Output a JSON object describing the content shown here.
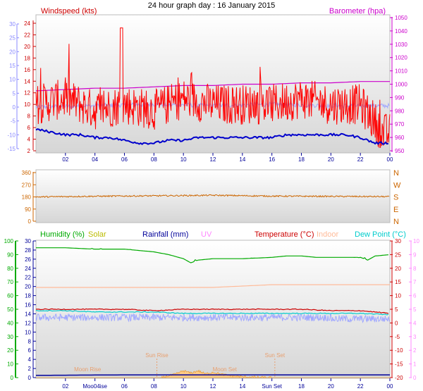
{
  "title": "24 hour graph day : 16 January 2015",
  "colors": {
    "wind": "#ff0000",
    "wind_axis": "#cc0000",
    "baro": "#cc00cc",
    "temp_left": "#8888ff",
    "blue_line": "#0000cc",
    "lavender": "#a0a8ff",
    "dir": "#cc6600",
    "humidity": "#00aa00",
    "solar": "#bbbb00",
    "rain": "#000099",
    "uv": "#ff88ff",
    "temperature": "#cc0000",
    "indoor": "#ffbb99",
    "dewpoint": "#00cccc",
    "plot_top": "#ffffff",
    "plot_bottom": "#d8d8d8"
  },
  "x_ticks": [
    "02",
    "04",
    "06",
    "08",
    "10",
    "12",
    "14",
    "16",
    "18",
    "20",
    "22",
    "00"
  ],
  "panel1": {
    "left_title": "Windspeed (kts)",
    "right_title": "Barometer (hpa)",
    "far_left_ticks": [
      "30",
      "25",
      "20",
      "15",
      "10",
      "5",
      "0",
      "-5",
      "-10",
      "-15"
    ],
    "left_ticks": [
      "24",
      "22",
      "20",
      "18",
      "16",
      "14",
      "12",
      "10",
      "8",
      "6",
      "4",
      "2"
    ],
    "right_ticks": [
      "1050",
      "1040",
      "1030",
      "1020",
      "1010",
      "1000",
      "990",
      "980",
      "970",
      "960",
      "950"
    ]
  },
  "panel2": {
    "left_ticks": [
      "360",
      "270",
      "180",
      "90",
      "0"
    ],
    "right_ticks": [
      "N",
      "W",
      "S",
      "E",
      "N"
    ]
  },
  "panel3": {
    "legend": {
      "humidity": "Humidity (%)",
      "solar": "Solar",
      "rainfall": "Rainfall (mm)",
      "uv": "UV",
      "temperature": "Temperature (°C)",
      "indoor": "Indoor",
      "dewpoint": "Dew Point (°C)"
    },
    "humidity_ticks": [
      "100",
      "90",
      "80",
      "70",
      "60",
      "50",
      "40",
      "30",
      "20",
      "10",
      "0"
    ],
    "left_ticks": [
      "30",
      "28",
      "26",
      "24",
      "22",
      "20",
      "18",
      "16",
      "14",
      "12",
      "10",
      "8",
      "6",
      "4",
      "2",
      "0"
    ],
    "right_temp_ticks": [
      "30",
      "25",
      "20",
      "15",
      "10",
      "5",
      "0",
      "-5",
      "-10",
      "-15",
      "-20"
    ],
    "right_uv_ticks": [
      "10",
      "9",
      "8",
      "7",
      "6",
      "5",
      "4",
      "3",
      "2",
      "1",
      "0"
    ],
    "annotations": {
      "sun_rise": "Sun Rise",
      "sun_set": "Sun Set",
      "moon_rise": "Moon Rise",
      "moon_set": "Moon Set"
    },
    "x_ticks": [
      "02",
      "Moo04ise",
      "06",
      "08",
      "10",
      "12",
      "14",
      "Sun Set",
      "18",
      "20",
      "22",
      "00"
    ]
  },
  "chart_data": [
    {
      "type": "line",
      "title": "24 hour graph day : 16 January 2015",
      "x_range_hours": [
        0,
        24
      ],
      "ylabel_left": "Windspeed (kts)",
      "ylabel_right": "Barometer (hpa)",
      "ylim_left": [
        2,
        25
      ],
      "ylim_right": [
        950,
        1050
      ],
      "series": [
        {
          "name": "Windspeed (kts)",
          "axis": "left",
          "x": [
            0,
            2,
            4,
            6,
            8,
            10,
            12,
            14,
            16,
            18,
            20,
            22,
            23,
            23.5,
            24
          ],
          "values": [
            10,
            11,
            9,
            10,
            9,
            11,
            10,
            10,
            10,
            11,
            10,
            10,
            7,
            5,
            5
          ],
          "gusts_max": 23.2
        },
        {
          "name": "Barometer (hpa)",
          "axis": "right",
          "x": [
            0,
            2,
            4,
            6,
            8,
            10,
            12,
            14,
            16,
            18,
            20,
            22,
            24
          ],
          "values": [
            995,
            996,
            997,
            997,
            998,
            999,
            999,
            1000,
            1000,
            1001,
            1001,
            1002,
            1002
          ]
        },
        {
          "axis": "far_left",
          "x": [
            0,
            1,
            2,
            3,
            4,
            5,
            6,
            7,
            8,
            9,
            10,
            11,
            12,
            13,
            14,
            15,
            16,
            17,
            18,
            19,
            20,
            21,
            22,
            23,
            24
          ],
          "values": [
            -8,
            -9,
            -10,
            -10,
            -11,
            -11,
            -12,
            -13,
            -13,
            -12,
            -12,
            -11,
            -11,
            -11,
            -11,
            -11,
            -11,
            -10,
            -10,
            -10,
            -10,
            -10,
            -11,
            -13,
            -13
          ]
        },
        {
          "axis": "far_left",
          "x": [
            0,
            4,
            8,
            12,
            16,
            20,
            24
          ],
          "values": [
            0,
            0.5,
            1,
            0.5,
            1,
            0.5,
            0.5
          ]
        }
      ]
    },
    {
      "type": "line",
      "x_range_hours": [
        0,
        24
      ],
      "ylim": [
        0,
        360
      ],
      "series": [
        {
          "x": [
            0,
            4,
            8,
            12,
            16,
            20,
            24
          ],
          "values": [
            180,
            185,
            188,
            192,
            186,
            184,
            182
          ]
        }
      ]
    },
    {
      "type": "line",
      "x_range_hours": [
        0,
        24
      ],
      "series": [
        {
          "name": "Humidity (%)",
          "axis": "humidity",
          "x": [
            0,
            2,
            4,
            6,
            7,
            8,
            9,
            10,
            10.5,
            11,
            12,
            14,
            16,
            17,
            18,
            19,
            20,
            21,
            22,
            22.5,
            23,
            24
          ],
          "values": [
            95,
            95,
            94,
            94,
            93,
            92,
            90,
            87,
            84,
            86,
            87,
            87,
            88,
            89,
            89,
            88,
            88,
            88,
            88,
            86,
            89,
            90
          ]
        },
        {
          "name": "Temperature (°C)",
          "axis": "right_temp",
          "x": [
            0,
            2,
            4,
            6,
            8,
            10,
            12,
            14,
            16,
            18,
            20,
            22,
            24
          ],
          "values": [
            5,
            5,
            5,
            5,
            4.5,
            5,
            5,
            5,
            5,
            5,
            4.5,
            4.5,
            3.5
          ]
        },
        {
          "name": "Dew Point (°C)",
          "axis": "right_temp",
          "x": [
            0,
            2,
            4,
            6,
            8,
            10,
            12,
            14,
            16,
            18,
            20,
            22,
            24
          ],
          "values": [
            4.5,
            4.5,
            4,
            4,
            4,
            3.5,
            3.5,
            3.5,
            3.5,
            3.5,
            3.5,
            3.5,
            3
          ]
        },
        {
          "name": "Indoor",
          "axis": "right_temp",
          "x": [
            0,
            12,
            16,
            24
          ],
          "values": [
            13,
            13,
            14,
            14
          ]
        },
        {
          "name": "Rainfall (mm)",
          "axis": "left",
          "x": [
            0,
            6,
            12,
            18,
            24
          ],
          "values": [
            0.5,
            0.6,
            0.6,
            0.6,
            0.6
          ]
        },
        {
          "name": "Solar",
          "axis": "left",
          "x": [
            0,
            8.5,
            9.5,
            10,
            10.5,
            11,
            11.5,
            12,
            12.5,
            13,
            14,
            15,
            16,
            24
          ],
          "values": [
            0,
            0,
            0.8,
            1.5,
            1.0,
            1.5,
            0.8,
            1.2,
            0.8,
            0.5,
            0.2,
            0.1,
            0,
            0
          ]
        }
      ],
      "annotations": {
        "sun_rise_hour": 8.2,
        "sun_set_hour": 16.2,
        "moon_rise_hour": 3.5,
        "moon_set_hour": 12.8
      }
    }
  ]
}
